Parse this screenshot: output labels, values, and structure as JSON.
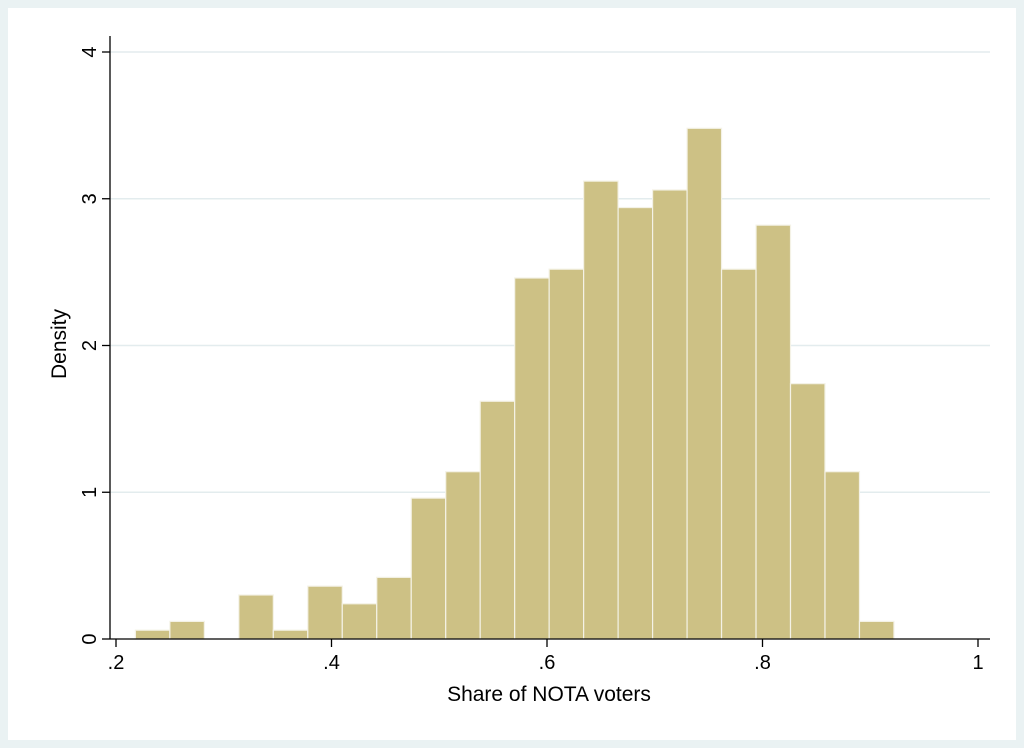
{
  "chart_data": {
    "type": "bar",
    "subtype": "histogram",
    "title": "",
    "xlabel": "Share of NOTA voters",
    "ylabel": "Density",
    "xlim": [
      0.2,
      1.0
    ],
    "ylim": [
      0,
      4
    ],
    "x_ticks": [
      0.2,
      0.4,
      0.6,
      0.8,
      1.0
    ],
    "x_tick_labels": [
      ".2",
      ".4",
      ".6",
      ".8",
      "1"
    ],
    "y_ticks": [
      0,
      1,
      2,
      3,
      4
    ],
    "y_tick_labels": [
      "0",
      "1",
      "2",
      "3",
      "4"
    ],
    "grid": true,
    "legend": "none",
    "bin_width": 0.032,
    "bins": [
      {
        "start": 0.218,
        "end": 0.25,
        "density": 0.06
      },
      {
        "start": 0.25,
        "end": 0.282,
        "density": 0.12
      },
      {
        "start": 0.282,
        "end": 0.314,
        "density": 0.0
      },
      {
        "start": 0.314,
        "end": 0.346,
        "density": 0.3
      },
      {
        "start": 0.346,
        "end": 0.378,
        "density": 0.06
      },
      {
        "start": 0.378,
        "end": 0.41,
        "density": 0.36
      },
      {
        "start": 0.41,
        "end": 0.442,
        "density": 0.24
      },
      {
        "start": 0.442,
        "end": 0.474,
        "density": 0.42
      },
      {
        "start": 0.474,
        "end": 0.506,
        "density": 0.96
      },
      {
        "start": 0.506,
        "end": 0.538,
        "density": 1.14
      },
      {
        "start": 0.538,
        "end": 0.57,
        "density": 1.62
      },
      {
        "start": 0.57,
        "end": 0.602,
        "density": 2.46
      },
      {
        "start": 0.602,
        "end": 0.634,
        "density": 2.52
      },
      {
        "start": 0.634,
        "end": 0.666,
        "density": 3.12
      },
      {
        "start": 0.666,
        "end": 0.698,
        "density": 2.94
      },
      {
        "start": 0.698,
        "end": 0.73,
        "density": 3.06
      },
      {
        "start": 0.73,
        "end": 0.762,
        "density": 3.48
      },
      {
        "start": 0.762,
        "end": 0.794,
        "density": 2.52
      },
      {
        "start": 0.794,
        "end": 0.826,
        "density": 2.82
      },
      {
        "start": 0.826,
        "end": 0.858,
        "density": 1.74
      },
      {
        "start": 0.858,
        "end": 0.89,
        "density": 1.14
      },
      {
        "start": 0.89,
        "end": 0.922,
        "density": 0.12
      }
    ],
    "colors": {
      "bar_fill": "#cdc185",
      "bar_stroke": "#f4f2e6",
      "outer_background": "#eaf2f3",
      "plot_background": "#ffffff",
      "gridline": "#e3ecee",
      "axis": "#000000"
    }
  }
}
